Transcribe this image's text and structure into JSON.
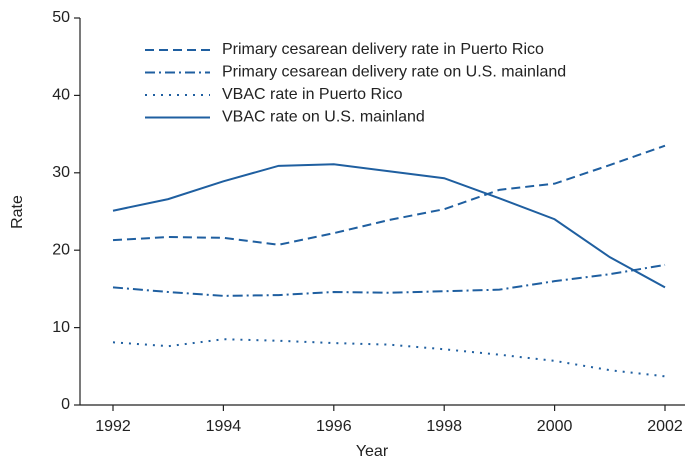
{
  "chart_data": {
    "type": "line",
    "xlabel": "Year",
    "ylabel": "Rate",
    "x": [
      1992,
      1993,
      1994,
      1995,
      1996,
      1997,
      1998,
      1999,
      2000,
      2001,
      2002
    ],
    "xlim": [
      1992,
      2002
    ],
    "xticks": [
      1992,
      1994,
      1996,
      1998,
      2000,
      2002
    ],
    "ylim": [
      0,
      50
    ],
    "yticks": [
      0,
      10,
      20,
      30,
      40,
      50
    ],
    "legend": "upper-left",
    "series": [
      {
        "name": "Primary cesarean delivery rate in Puerto Rico",
        "color": "#1f5fa0",
        "style": "dashed",
        "values": [
          21.3,
          21.7,
          21.6,
          20.7,
          22.2,
          23.9,
          25.3,
          27.8,
          28.6,
          31.0,
          33.5
        ]
      },
      {
        "name": "Primary cesarean delivery rate on U.S. mainland",
        "color": "#1f5fa0",
        "style": "dashdot",
        "values": [
          15.2,
          14.6,
          14.1,
          14.2,
          14.6,
          14.5,
          14.7,
          14.9,
          16.0,
          16.9,
          18.1
        ]
      },
      {
        "name": "VBAC rate in Puerto Rico",
        "color": "#1f5fa0",
        "style": "dotted",
        "values": [
          8.1,
          7.6,
          8.5,
          8.3,
          8.0,
          7.8,
          7.2,
          6.5,
          5.7,
          4.5,
          3.7
        ]
      },
      {
        "name": "VBAC rate on U.S. mainland",
        "color": "#1f5fa0",
        "style": "solid",
        "values": [
          25.1,
          26.6,
          28.9,
          30.9,
          31.1,
          30.2,
          29.3,
          26.7,
          24.0,
          19.1,
          15.2
        ]
      }
    ]
  }
}
